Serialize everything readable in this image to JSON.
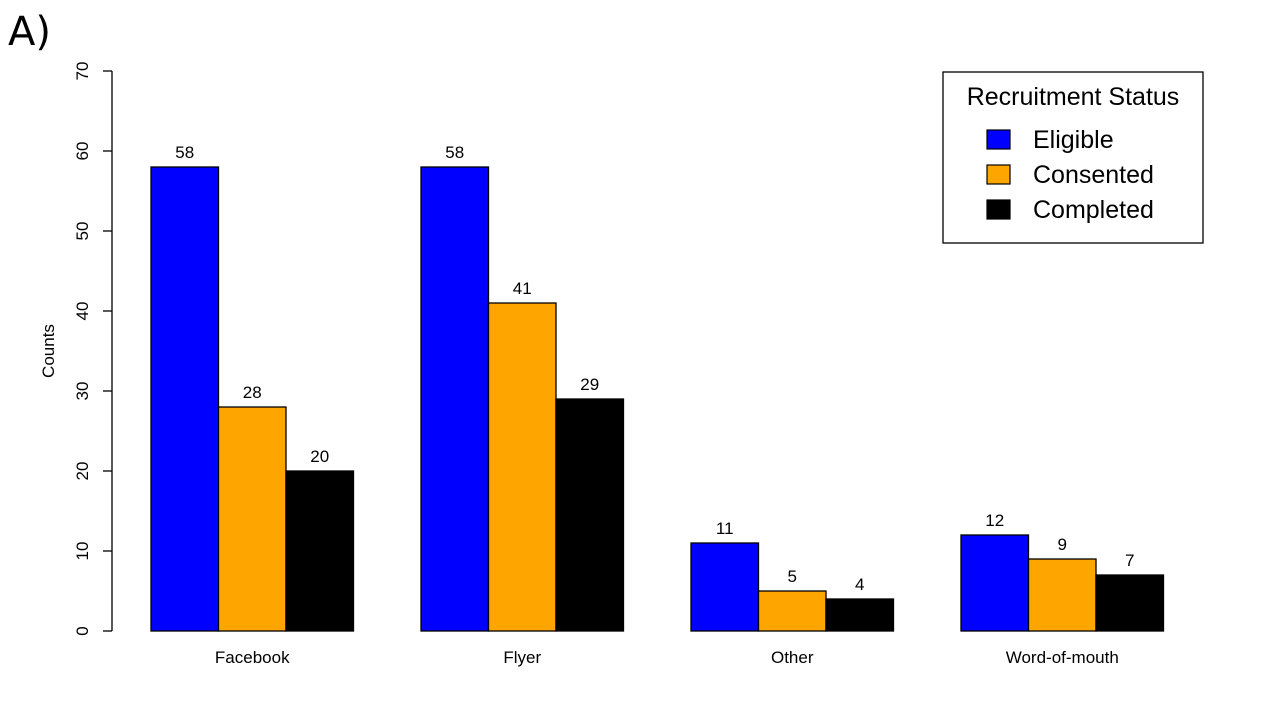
{
  "panel_label": "A)",
  "chart_data": {
    "type": "bar",
    "categories": [
      "Facebook",
      "Flyer",
      "Other",
      "Word-of-mouth"
    ],
    "series": [
      {
        "name": "Eligible",
        "color": "#0000ff",
        "values": [
          58,
          58,
          11,
          12
        ]
      },
      {
        "name": "Consented",
        "color": "#ffa500",
        "values": [
          28,
          41,
          5,
          9
        ]
      },
      {
        "name": "Completed",
        "color": "#000000",
        "values": [
          20,
          29,
          4,
          7
        ]
      }
    ],
    "ylabel": "Counts",
    "ylim": [
      0,
      70
    ],
    "yticks": [
      0,
      10,
      20,
      30,
      40,
      50,
      60,
      70
    ],
    "legend": {
      "title": "Recruitment Status",
      "position": "top-right"
    },
    "grid": false,
    "data_labels": true
  }
}
